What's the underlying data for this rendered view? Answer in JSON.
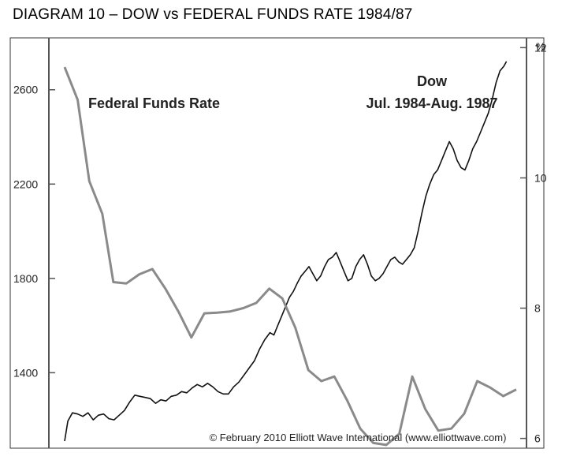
{
  "title": "DIAGRAM 10 – DOW vs FEDERAL FUNDS RATE 1984/87",
  "credit": "© February 2010 Elliott Wave International (www.elliottwave.com)",
  "colors": {
    "dow": "#111111",
    "ffr": "#8a8a8a",
    "axis": "#555555",
    "frame": "#333333"
  },
  "chart_data": {
    "type": "line",
    "title": "DIAGRAM 10 – DOW vs FEDERAL FUNDS RATE 1984/87",
    "x_range": [
      "1984-07",
      "1987-08"
    ],
    "left_axis": {
      "ticks": [
        "1400",
        "1800",
        "2200",
        "2600"
      ],
      "ylim": [
        1080,
        2820
      ]
    },
    "right_axis": {
      "unit": "%",
      "ticks": [
        "6",
        "8",
        "10",
        "12"
      ],
      "ylim": [
        5.85,
        12.15
      ]
    },
    "annotations": {
      "ffr": "Federal Funds Rate",
      "dow_line1": "Dow",
      "dow_line2": "Jul. 1984-Aug. 1987"
    },
    "series": [
      {
        "key": "dow",
        "axis": "left",
        "values": [
          [
            1984.5,
            1110
          ],
          [
            1984.55,
            1195
          ],
          [
            1984.62,
            1230
          ],
          [
            1984.7,
            1225
          ],
          [
            1984.78,
            1215
          ],
          [
            1984.86,
            1230
          ],
          [
            1984.94,
            1200
          ],
          [
            1985.02,
            1220
          ],
          [
            1985.1,
            1225
          ],
          [
            1985.18,
            1205
          ],
          [
            1985.26,
            1200
          ],
          [
            1985.34,
            1220
          ],
          [
            1985.42,
            1240
          ],
          [
            1985.5,
            1275
          ],
          [
            1985.58,
            1305
          ],
          [
            1985.66,
            1300
          ],
          [
            1985.74,
            1295
          ],
          [
            1985.82,
            1290
          ],
          [
            1985.9,
            1270
          ],
          [
            1985.98,
            1285
          ],
          [
            1986.06,
            1280
          ],
          [
            1986.14,
            1300
          ],
          [
            1986.22,
            1305
          ],
          [
            1986.3,
            1320
          ],
          [
            1986.38,
            1315
          ],
          [
            1986.46,
            1335
          ],
          [
            1986.54,
            1350
          ],
          [
            1986.62,
            1340
          ],
          [
            1986.7,
            1355
          ],
          [
            1986.78,
            1340
          ],
          [
            1986.86,
            1320
          ],
          [
            1986.94,
            1310
          ],
          [
            1987.02,
            1310
          ],
          [
            1987.1,
            1340
          ],
          [
            1987.18,
            1360
          ],
          [
            1987.26,
            1390
          ],
          [
            1987.34,
            1420
          ],
          [
            1987.42,
            1450
          ],
          [
            1987.5,
            1500
          ],
          [
            1987.58,
            1540
          ],
          [
            1987.66,
            1570
          ],
          [
            1987.72,
            1560
          ],
          [
            1987.78,
            1600
          ],
          [
            1987.84,
            1640
          ],
          [
            1987.9,
            1680
          ],
          [
            1987.96,
            1720
          ],
          [
            1988.02,
            1745
          ],
          [
            1988.08,
            1780
          ],
          [
            1988.14,
            1810
          ],
          [
            1988.2,
            1830
          ],
          [
            1988.26,
            1850
          ],
          [
            1988.32,
            1820
          ],
          [
            1988.38,
            1790
          ],
          [
            1988.44,
            1810
          ],
          [
            1988.5,
            1850
          ],
          [
            1988.56,
            1880
          ],
          [
            1988.62,
            1890
          ],
          [
            1988.68,
            1910
          ],
          [
            1988.74,
            1870
          ],
          [
            1988.8,
            1830
          ],
          [
            1988.86,
            1790
          ],
          [
            1988.92,
            1800
          ],
          [
            1988.98,
            1850
          ],
          [
            1989.04,
            1880
          ],
          [
            1989.1,
            1900
          ],
          [
            1989.16,
            1860
          ],
          [
            1989.22,
            1810
          ],
          [
            1989.28,
            1790
          ],
          [
            1989.34,
            1800
          ],
          [
            1989.4,
            1820
          ],
          [
            1989.46,
            1850
          ],
          [
            1989.52,
            1880
          ],
          [
            1989.58,
            1890
          ],
          [
            1989.64,
            1870
          ],
          [
            1989.7,
            1860
          ],
          [
            1989.76,
            1880
          ],
          [
            1989.82,
            1900
          ],
          [
            1989.88,
            1930
          ],
          [
            1989.94,
            2000
          ],
          [
            1990.0,
            2080
          ],
          [
            1990.06,
            2150
          ],
          [
            1990.12,
            2200
          ],
          [
            1990.18,
            2240
          ],
          [
            1990.24,
            2260
          ],
          [
            1990.3,
            2300
          ],
          [
            1990.36,
            2340
          ],
          [
            1990.42,
            2380
          ],
          [
            1990.48,
            2350
          ],
          [
            1990.54,
            2300
          ],
          [
            1990.6,
            2270
          ],
          [
            1990.66,
            2260
          ],
          [
            1990.72,
            2300
          ],
          [
            1990.78,
            2350
          ],
          [
            1990.84,
            2380
          ],
          [
            1990.9,
            2420
          ],
          [
            1990.96,
            2460
          ],
          [
            1991.02,
            2500
          ],
          [
            1991.08,
            2560
          ],
          [
            1991.14,
            2630
          ],
          [
            1991.2,
            2680
          ],
          [
            1991.26,
            2700
          ],
          [
            1991.3,
            2720
          ]
        ]
      },
      {
        "key": "ffr",
        "axis": "right",
        "values": [
          [
            1984.5,
            11.7
          ],
          [
            1984.7,
            11.2
          ],
          [
            1984.88,
            9.95
          ],
          [
            1985.08,
            9.45
          ],
          [
            1985.25,
            8.4
          ],
          [
            1985.45,
            8.38
          ],
          [
            1985.65,
            8.52
          ],
          [
            1985.85,
            8.6
          ],
          [
            1986.05,
            8.3
          ],
          [
            1986.25,
            7.95
          ],
          [
            1986.45,
            7.55
          ],
          [
            1986.65,
            7.92
          ],
          [
            1986.85,
            7.93
          ],
          [
            1987.05,
            7.95
          ],
          [
            1987.25,
            8.0
          ],
          [
            1987.45,
            8.08
          ],
          [
            1987.65,
            8.3
          ],
          [
            1987.85,
            8.15
          ],
          [
            1988.05,
            7.7
          ],
          [
            1988.25,
            7.05
          ],
          [
            1988.45,
            6.88
          ],
          [
            1988.65,
            6.95
          ],
          [
            1988.85,
            6.58
          ],
          [
            1989.05,
            6.15
          ],
          [
            1989.25,
            5.93
          ],
          [
            1989.45,
            5.9
          ],
          [
            1989.65,
            6.07
          ],
          [
            1989.85,
            6.95
          ],
          [
            1990.05,
            6.45
          ],
          [
            1990.25,
            6.12
          ],
          [
            1990.45,
            6.15
          ],
          [
            1990.65,
            6.38
          ],
          [
            1990.85,
            6.88
          ],
          [
            1991.05,
            6.78
          ],
          [
            1991.25,
            6.65
          ],
          [
            1991.45,
            6.75
          ]
        ]
      }
    ]
  }
}
